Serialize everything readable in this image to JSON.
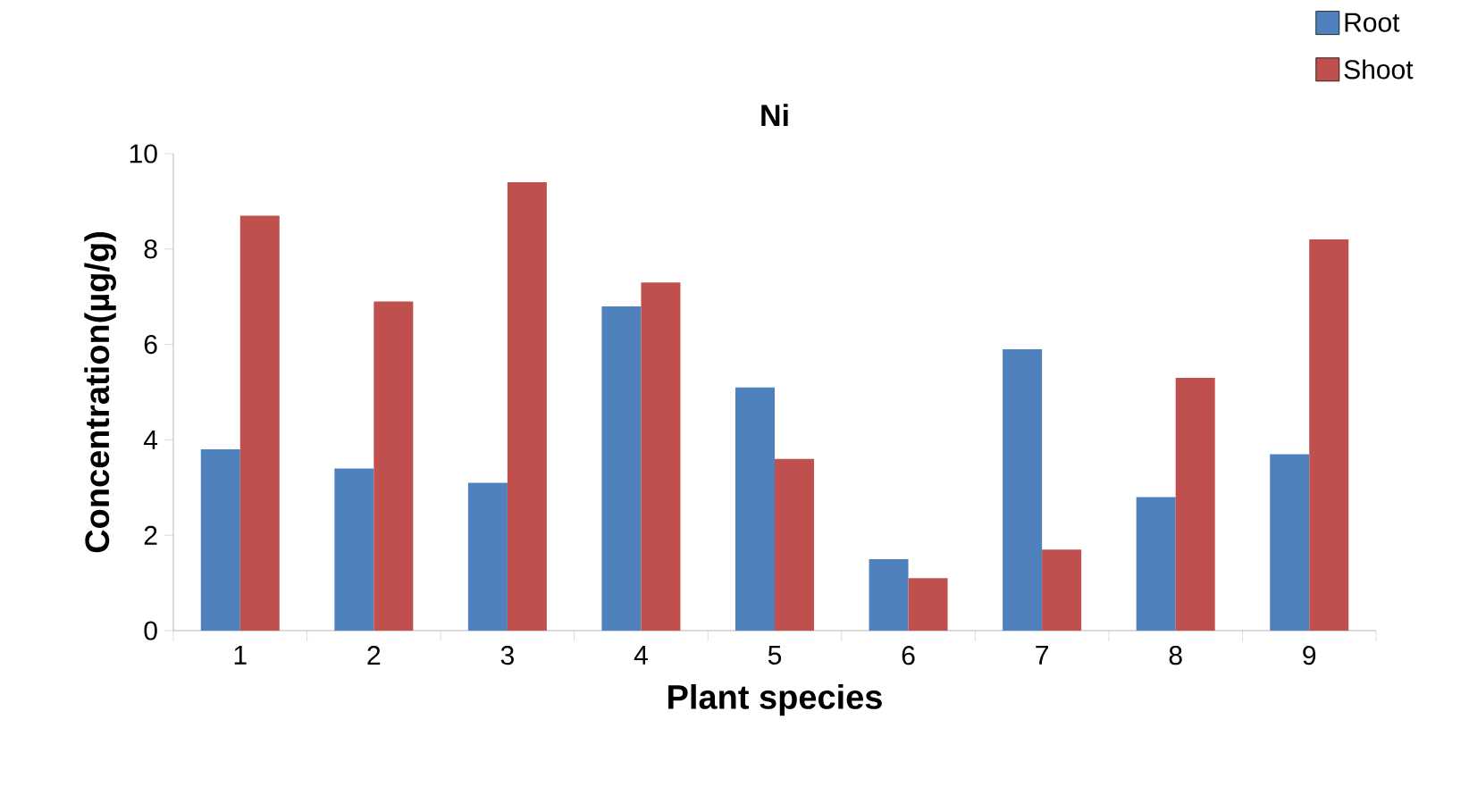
{
  "chart_data": {
    "type": "bar",
    "title": "Ni",
    "xlabel": "Plant species",
    "ylabel": "Concentration(µg/g)",
    "categories": [
      "1",
      "2",
      "3",
      "4",
      "5",
      "6",
      "7",
      "8",
      "9"
    ],
    "series": [
      {
        "name": "Root",
        "color": "#4f81bd",
        "values": [
          3.8,
          3.4,
          3.1,
          6.8,
          5.1,
          1.5,
          5.9,
          2.8,
          3.7
        ]
      },
      {
        "name": "Shoot",
        "color": "#c0504d",
        "values": [
          8.7,
          6.9,
          9.4,
          7.3,
          3.6,
          1.1,
          1.7,
          5.3,
          8.2
        ]
      }
    ],
    "ylim": [
      0,
      10
    ],
    "yticks": [
      0,
      2,
      4,
      6,
      8,
      10
    ],
    "grid": false,
    "legend": "top right"
  }
}
